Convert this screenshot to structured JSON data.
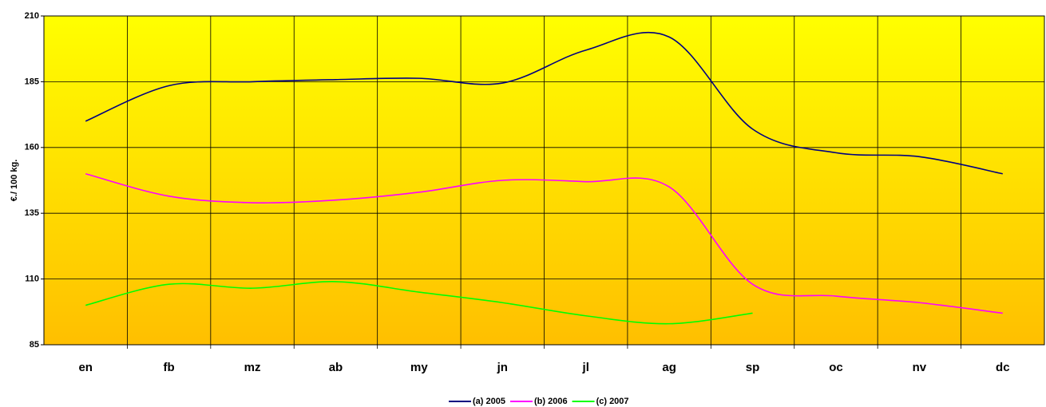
{
  "chart_data": {
    "type": "line",
    "y_label": "€./ 100 kg.",
    "categories": [
      "en",
      "fb",
      "mz",
      "ab",
      "my",
      "jn",
      "jl",
      "ag",
      "sp",
      "oc",
      "nv",
      "dc"
    ],
    "series": [
      {
        "name": "(a) 2005",
        "color": "#000080",
        "values": [
          170,
          183.5,
          185,
          185.8,
          186.3,
          184.5,
          197,
          202,
          167,
          158,
          156.5,
          150
        ]
      },
      {
        "name": "(b) 2006",
        "color": "#ff00ff",
        "values": [
          150,
          141.5,
          139,
          140,
          143,
          147.5,
          147,
          145,
          108,
          103.5,
          101,
          97
        ]
      },
      {
        "name": "(c) 2007",
        "color": "#00ff00",
        "values": [
          100,
          108,
          106.5,
          109,
          105,
          101,
          96,
          93,
          97,
          null,
          null,
          null
        ]
      }
    ],
    "ylim": [
      85,
      210
    ],
    "yticks": [
      85,
      110,
      135,
      160,
      185,
      210
    ],
    "grid": true
  }
}
